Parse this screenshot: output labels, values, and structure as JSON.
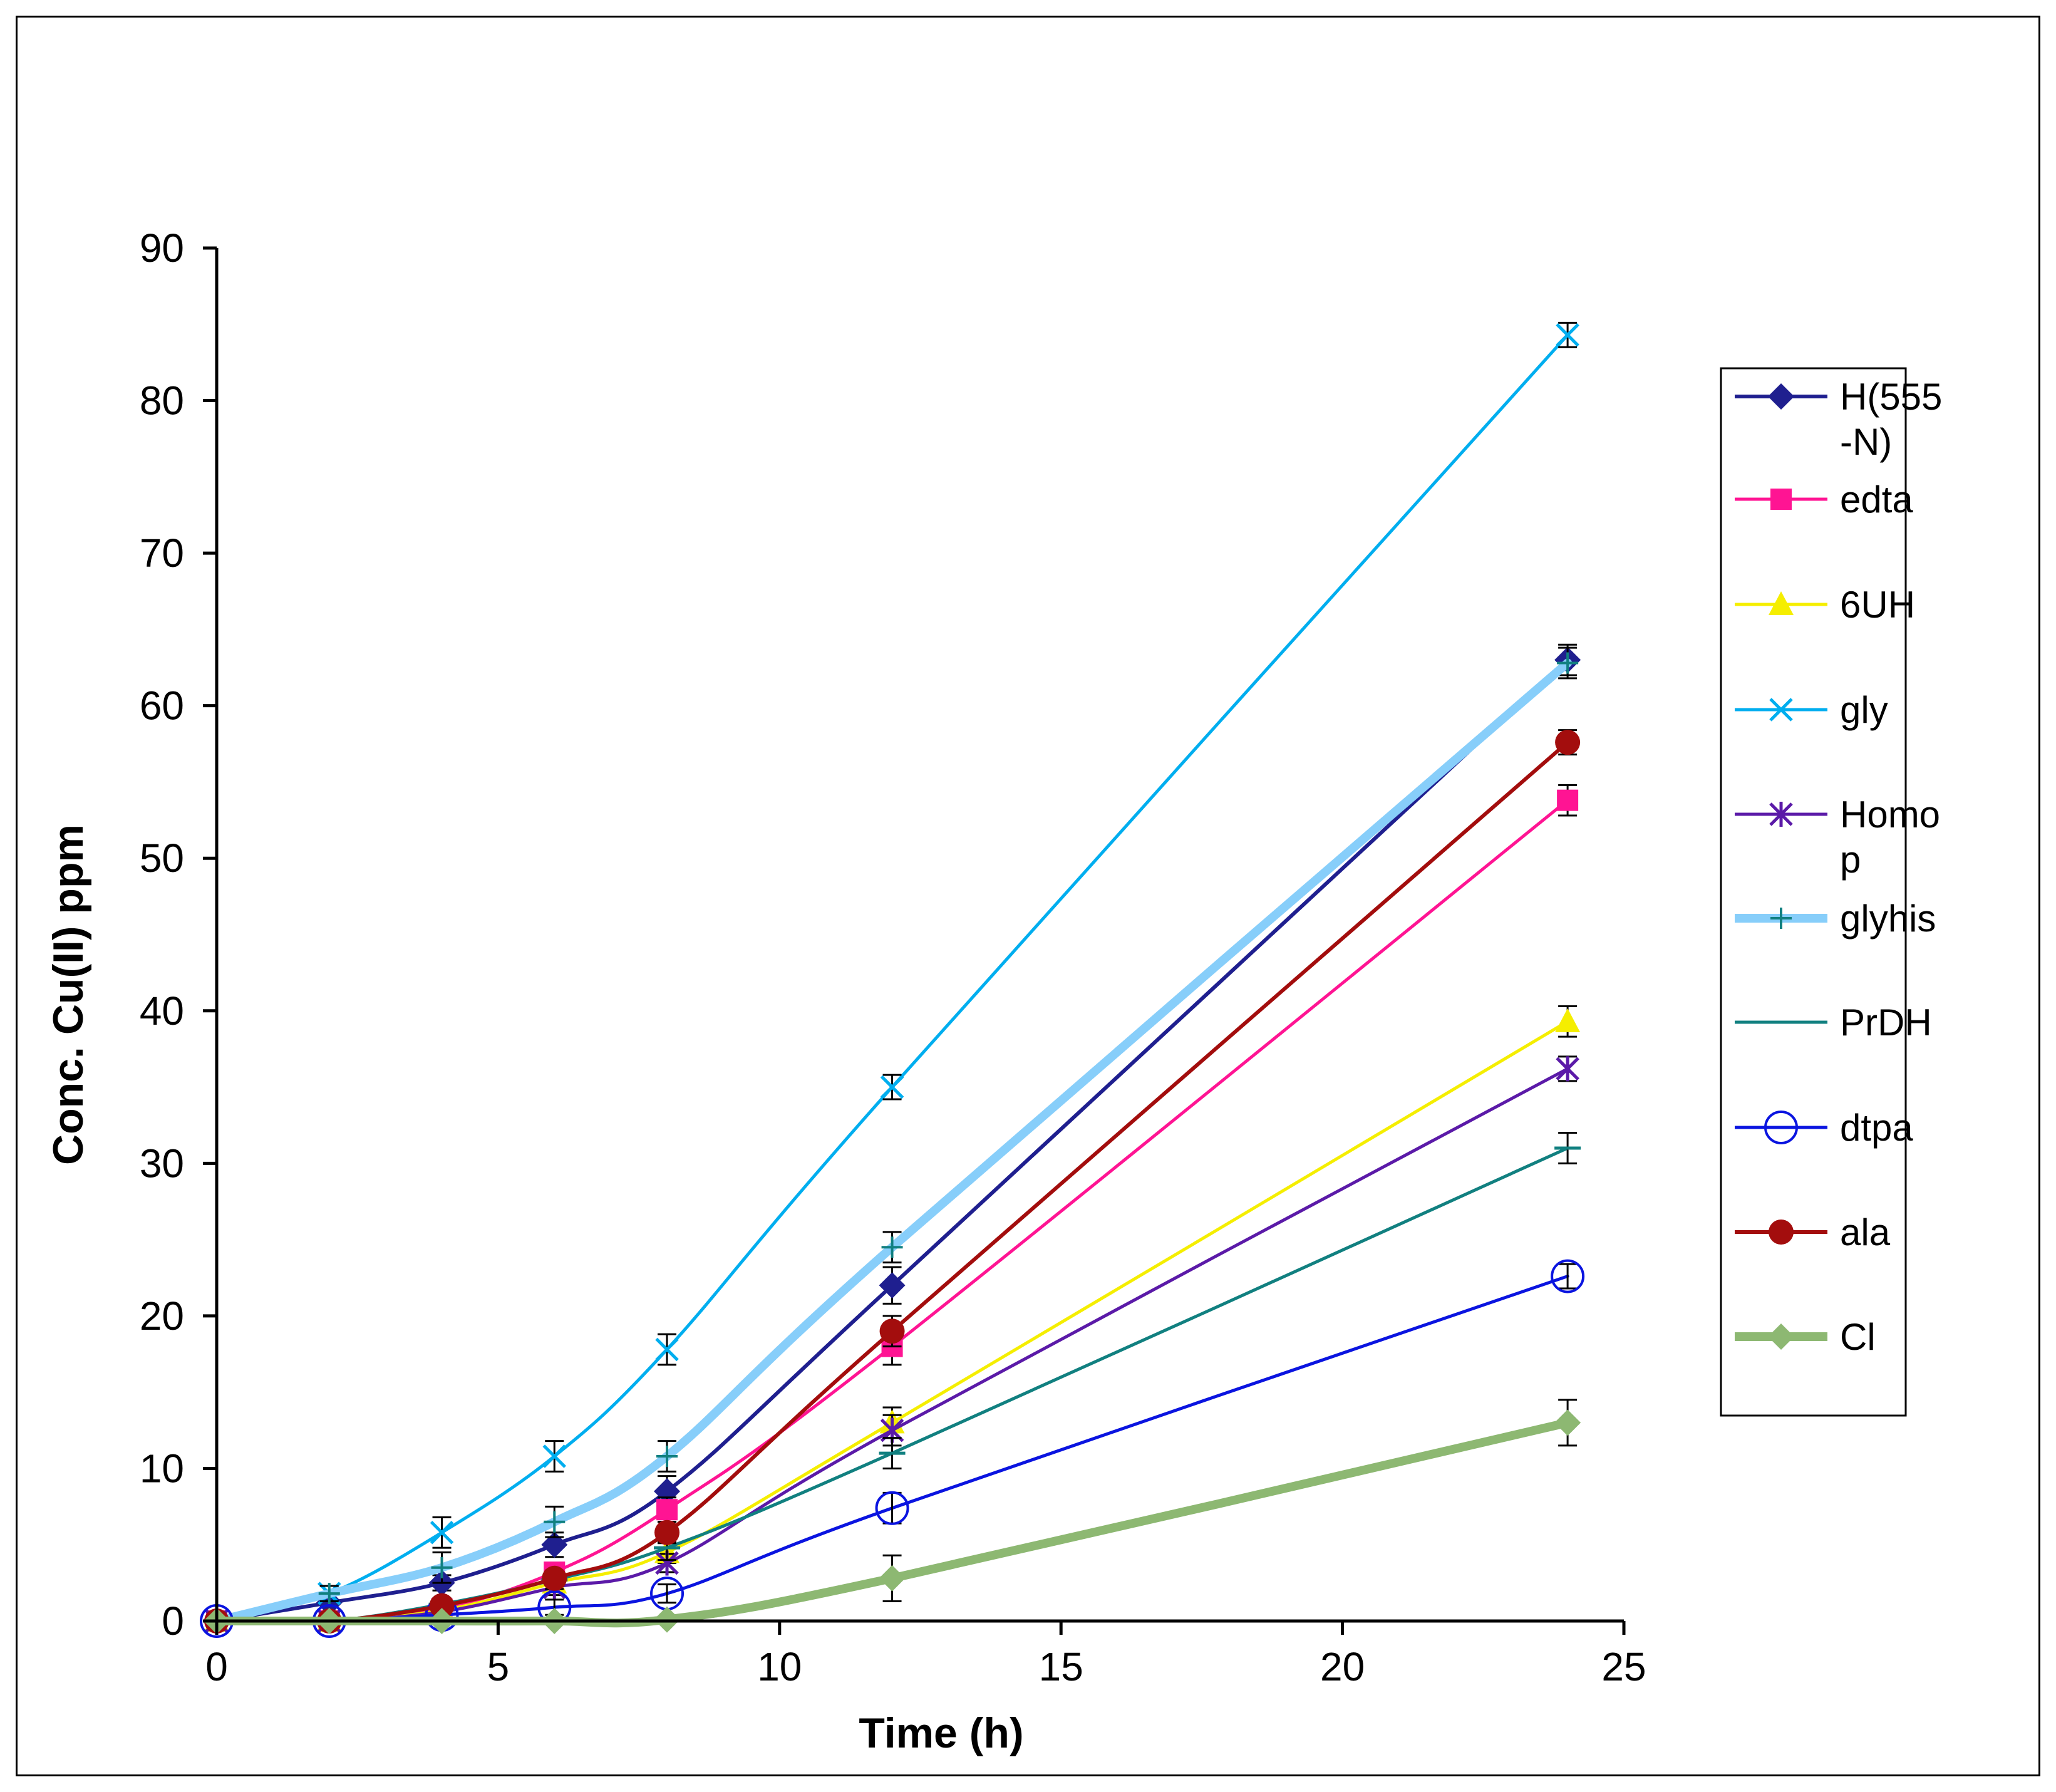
{
  "chart_data": {
    "type": "line",
    "title": "",
    "xlabel": "Time (h)",
    "ylabel": "Conc. Cu(II) ppm",
    "xlim": [
      0,
      25
    ],
    "ylim": [
      0,
      90
    ],
    "xticks": [
      0,
      5,
      10,
      15,
      20,
      25
    ],
    "yticks": [
      0,
      10,
      20,
      30,
      40,
      50,
      60,
      70,
      80,
      90
    ],
    "x": [
      0,
      2,
      4,
      6,
      8,
      12,
      24
    ],
    "legend_position": "right",
    "series": [
      {
        "name": "H(555\n-N)",
        "legend_lines": [
          "H(555",
          "-N)"
        ],
        "color": "#1F1F8F",
        "marker": "diamond",
        "line_width": 6,
        "values": [
          0,
          1.2,
          2.5,
          5,
          8.5,
          22,
          63
        ],
        "errors": [
          0,
          0,
          0.5,
          0.8,
          1,
          1.2,
          1
        ]
      },
      {
        "name": "edta",
        "legend_lines": [
          "edta"
        ],
        "color": "#FF1493",
        "marker": "square",
        "line_width": 5,
        "values": [
          0,
          0,
          0.8,
          3.2,
          7.3,
          18,
          53.8
        ],
        "errors": [
          0,
          0,
          0.5,
          0.6,
          0.8,
          1.2,
          1
        ]
      },
      {
        "name": "6UH",
        "legend_lines": [
          "6UH"
        ],
        "color": "#F5EE00",
        "marker": "triangle",
        "line_width": 5,
        "values": [
          0,
          0,
          0.7,
          2.5,
          4.5,
          13,
          39.3
        ],
        "errors": [
          0,
          0,
          0.4,
          0.5,
          0.7,
          1,
          1
        ]
      },
      {
        "name": "gly",
        "legend_lines": [
          "gly"
        ],
        "color": "#00AEEF",
        "marker": "x",
        "line_width": 5,
        "values": [
          0,
          1.8,
          5.8,
          10.8,
          17.8,
          35,
          84.3
        ],
        "errors": [
          0,
          0.5,
          1,
          1,
          1,
          0.8,
          0.8
        ]
      },
      {
        "name": "Homo\np",
        "legend_lines": [
          "Homo",
          "p"
        ],
        "color": "#5B1AA8",
        "marker": "asterisk",
        "line_width": 5,
        "values": [
          0,
          0,
          0.6,
          2.2,
          3.8,
          12.5,
          36.2
        ],
        "errors": [
          0,
          0,
          0.4,
          0.5,
          0.6,
          1,
          0.8
        ]
      },
      {
        "name": "glyhis",
        "legend_lines": [
          "glyhis"
        ],
        "color": "#87CEFA",
        "marker": "plus",
        "line_width": 14,
        "values": [
          0,
          1.8,
          3.5,
          6.5,
          10.8,
          24.5,
          62.8
        ],
        "errors": [
          0,
          0.5,
          1,
          1,
          1,
          1,
          1
        ]
      },
      {
        "name": "PrDH",
        "legend_lines": [
          "PrDH"
        ],
        "color": "#118080",
        "marker": "dash",
        "line_width": 5,
        "values": [
          0,
          0,
          1.1,
          2.7,
          4.8,
          11,
          31
        ],
        "errors": [
          0,
          0,
          0.4,
          0.6,
          0.8,
          1,
          1
        ]
      },
      {
        "name": "dtpa",
        "legend_lines": [
          "dtpa"
        ],
        "color": "#0A14E0",
        "marker": "circle-open",
        "line_width": 5,
        "values": [
          0,
          0,
          0.4,
          0.9,
          1.8,
          7.4,
          22.6
        ],
        "errors": [
          0,
          0,
          0.3,
          0.5,
          0.6,
          1,
          0.8
        ]
      },
      {
        "name": "ala",
        "legend_lines": [
          "ala"
        ],
        "color": "#A30D0D",
        "marker": "circle",
        "line_width": 6,
        "values": [
          0,
          0,
          1,
          2.8,
          5.8,
          19,
          57.6
        ],
        "errors": [
          0,
          0,
          0.4,
          0.5,
          0.7,
          1,
          0.8
        ]
      },
      {
        "name": "Cl",
        "legend_lines": [
          "Cl"
        ],
        "color": "#8DB872",
        "marker": "diamond",
        "line_width": 14,
        "values": [
          0,
          0,
          0,
          0,
          0.1,
          2.8,
          13
        ],
        "errors": [
          0,
          0,
          0,
          0,
          0,
          1.5,
          1.5
        ]
      }
    ]
  }
}
